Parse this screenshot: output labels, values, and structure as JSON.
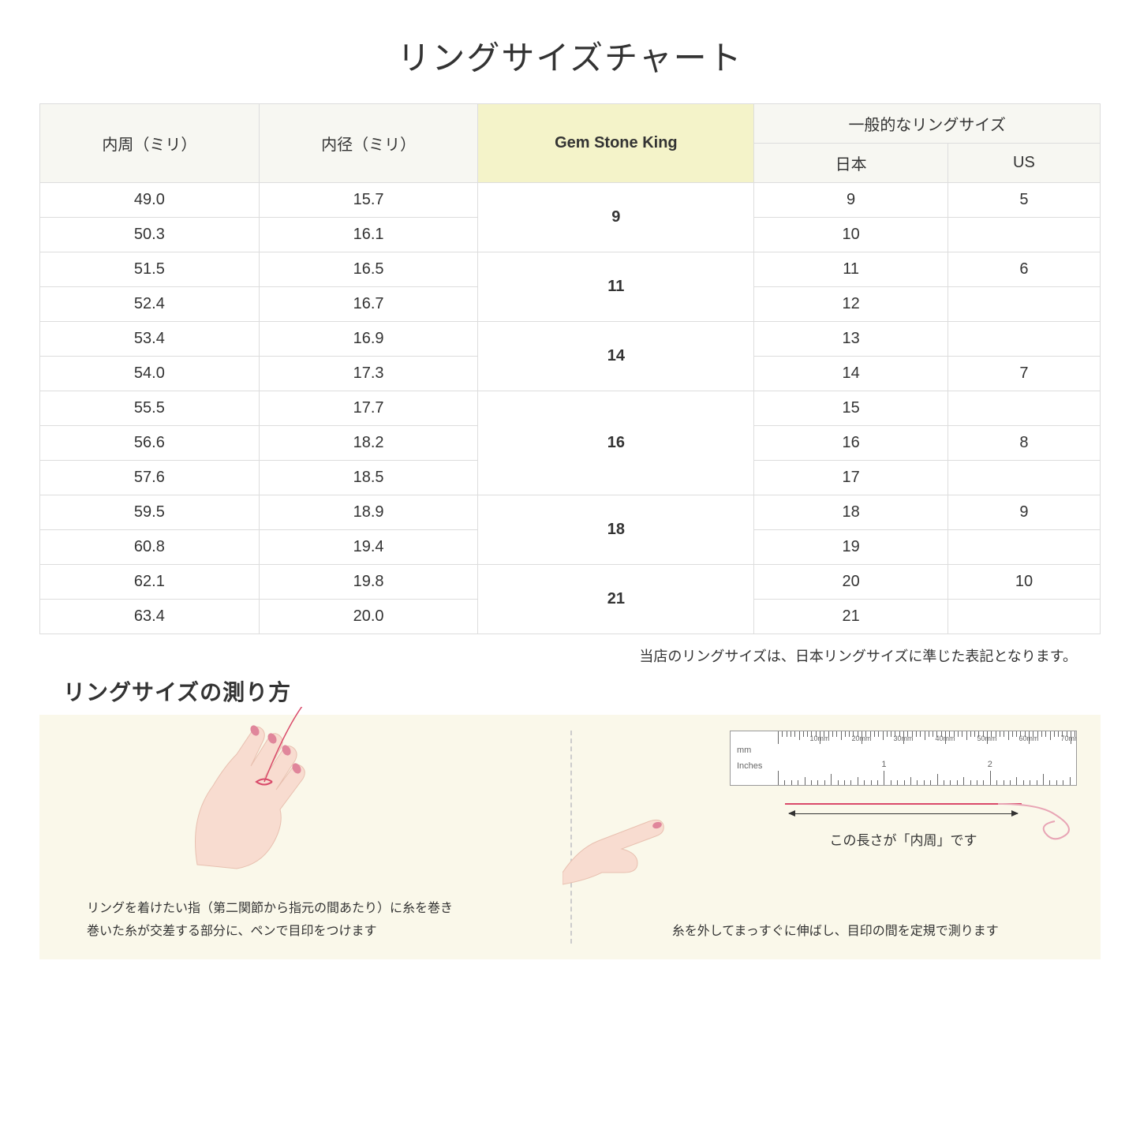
{
  "title": "リングサイズチャート",
  "headers": {
    "circumference": "内周（ミリ）",
    "diameter": "内径（ミリ）",
    "gsk": "Gem Stone King",
    "common": "一般的なリングサイズ",
    "japan": "日本",
    "us": "US"
  },
  "rows": [
    {
      "circ": "49.0",
      "diam": "15.7",
      "gsk": "9",
      "gsk_rowspan": 2,
      "jp": "9",
      "us": "5"
    },
    {
      "circ": "50.3",
      "diam": "16.1",
      "jp": "10",
      "us": ""
    },
    {
      "circ": "51.5",
      "diam": "16.5",
      "gsk": "11",
      "gsk_rowspan": 2,
      "jp": "11",
      "us": "6"
    },
    {
      "circ": "52.4",
      "diam": "16.7",
      "jp": "12",
      "us": ""
    },
    {
      "circ": "53.4",
      "diam": "16.9",
      "gsk": "14",
      "gsk_rowspan": 2,
      "jp": "13",
      "us": ""
    },
    {
      "circ": "54.0",
      "diam": "17.3",
      "jp": "14",
      "us": "7"
    },
    {
      "circ": "55.5",
      "diam": "17.7",
      "gsk": "16",
      "gsk_rowspan": 3,
      "jp": "15",
      "us": ""
    },
    {
      "circ": "56.6",
      "diam": "18.2",
      "jp": "16",
      "us": "8"
    },
    {
      "circ": "57.6",
      "diam": "18.5",
      "jp": "17",
      "us": ""
    },
    {
      "circ": "59.5",
      "diam": "18.9",
      "gsk": "18",
      "gsk_rowspan": 2,
      "jp": "18",
      "us": "9"
    },
    {
      "circ": "60.8",
      "diam": "19.4",
      "jp": "19",
      "us": ""
    },
    {
      "circ": "62.1",
      "diam": "19.8",
      "gsk": "21",
      "gsk_rowspan": 2,
      "jp": "20",
      "us": "10"
    },
    {
      "circ": "63.4",
      "diam": "20.0",
      "jp": "21",
      "us": ""
    }
  ],
  "note": "当店のリングサイズは、日本リングサイズに準じた表記となります。",
  "measure_title": "リングサイズの測り方",
  "instructions": {
    "left": "リングを着けたい指（第二関節から指元の間あたり）に糸を巻き\n巻いた糸が交差する部分に、ペンで目印をつけます",
    "right": "糸を外してまっすぐに伸ばし、目印の間を定規で測ります",
    "arrow_label": "この長さが「内周」です"
  },
  "colors": {
    "header_bg": "#f7f7f2",
    "highlight_bg": "#f4f3c9",
    "border": "#dddddd",
    "panel_bg": "#faf8ea",
    "skin": "#f8dcd0",
    "nail": "#e0869b",
    "thread": "#d94a6a"
  },
  "ruler": {
    "mm_label": "mm",
    "in_label": "Inches",
    "mm_marks": [
      "10mm",
      "20mm",
      "30mm",
      "40mm",
      "50mm",
      "60mm",
      "70mm"
    ],
    "in_marks": [
      "1",
      "2"
    ]
  }
}
